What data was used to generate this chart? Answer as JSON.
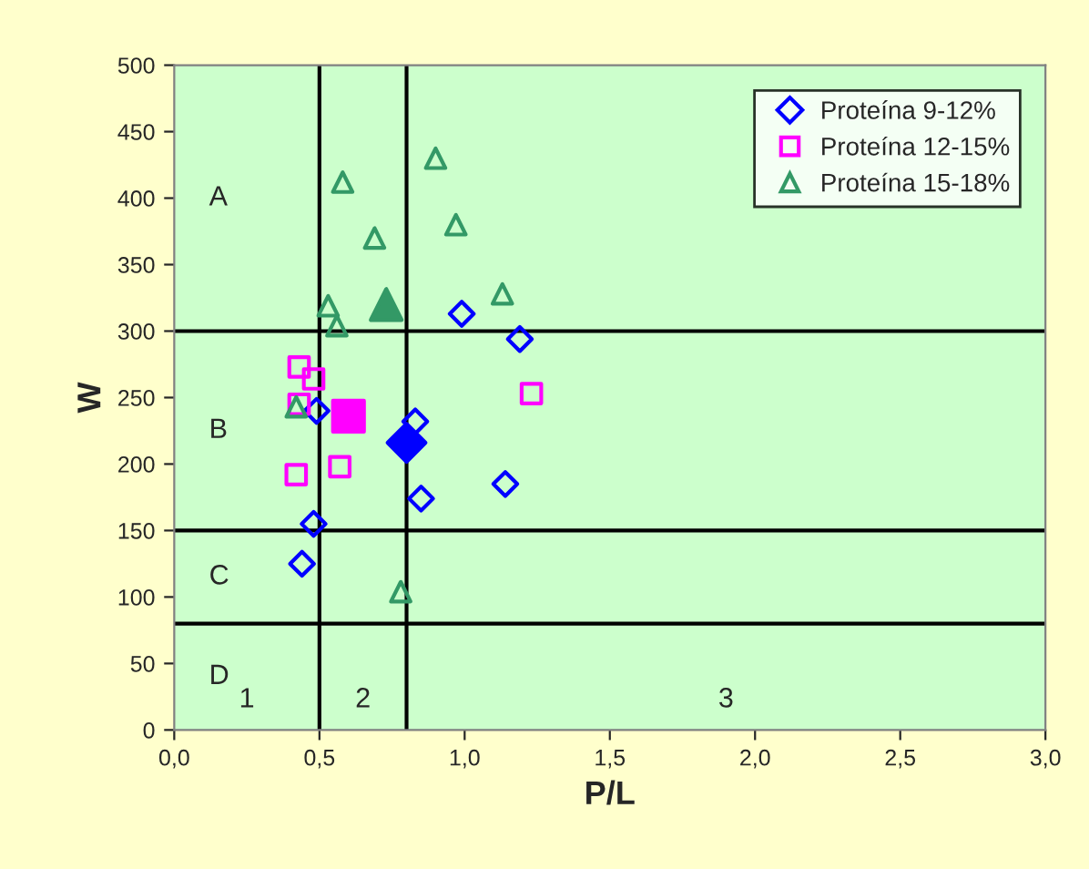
{
  "chart_data": {
    "type": "scatter",
    "xlabel": "P/L",
    "ylabel": "W",
    "xlim": [
      0,
      3
    ],
    "xticks": [
      {
        "value": 0,
        "label": "0,0"
      },
      {
        "value": 0.5,
        "label": "0,5"
      },
      {
        "value": 1,
        "label": "1,0"
      },
      {
        "value": 1.5,
        "label": "1,5"
      },
      {
        "value": 2,
        "label": "2,0"
      },
      {
        "value": 2.5,
        "label": "2,5"
      },
      {
        "value": 3,
        "label": "3,0"
      }
    ],
    "ylim": [
      0,
      500
    ],
    "yticks": [
      0,
      50,
      100,
      150,
      200,
      250,
      300,
      350,
      400,
      450,
      500
    ],
    "grid": false,
    "legend": "top right",
    "series": [
      {
        "name": "Proteína 9-12%",
        "color": "#0000ff",
        "marker": "diamond",
        "x": [
          0.99,
          1.19,
          0.49,
          0.83,
          0.85,
          1.14,
          0.48,
          0.44
        ],
        "values": [
          313,
          294,
          240,
          232,
          174,
          185,
          155,
          125
        ]
      },
      {
        "name": "Proteína 12-15%",
        "color": "#ff00ff",
        "marker": "square",
        "x": [
          0.43,
          0.48,
          1.23,
          0.42,
          0.57,
          0.43
        ],
        "values": [
          273,
          264,
          253,
          192,
          198,
          245
        ]
      },
      {
        "name": "Proteína 15-18%",
        "color": "#339966",
        "marker": "triangle",
        "x": [
          0.58,
          0.9,
          0.69,
          0.97,
          1.13,
          0.53,
          0.56,
          0.42,
          0.78
        ],
        "values": [
          412,
          430,
          370,
          380,
          328,
          319,
          304,
          243,
          104
        ]
      },
      {
        "color": "#0000ff",
        "marker": "diamond",
        "x": [
          0.8
        ],
        "values": [
          216
        ]
      },
      {
        "color": "#ff00ff",
        "marker": "square",
        "x": [
          0.6
        ],
        "values": [
          236
        ]
      },
      {
        "color": "#339966",
        "marker": "triangle",
        "x": [
          0.73
        ],
        "values": [
          320
        ]
      }
    ],
    "ref_lines": [
      {
        "axis": "x",
        "value": 0.5,
        "color": "#000000"
      },
      {
        "axis": "x",
        "value": 0.8,
        "color": "#000000"
      },
      {
        "axis": "y",
        "value": 300,
        "color": "#000000"
      },
      {
        "axis": "y",
        "value": 150,
        "color": "#000000"
      },
      {
        "axis": "y",
        "value": 80,
        "color": "#000000"
      }
    ],
    "annotations": [
      "A",
      "B",
      "C",
      "D",
      "1",
      "2",
      "3"
    ]
  }
}
